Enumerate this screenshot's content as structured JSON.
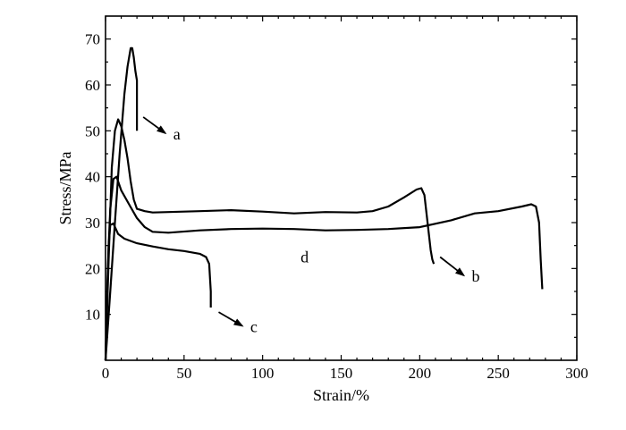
{
  "chart_data": {
    "type": "line",
    "xlabel": "Strain/%",
    "ylabel": "Stress/MPa",
    "xlim": [
      0,
      300
    ],
    "ylim": [
      0,
      75
    ],
    "xticks": [
      0,
      50,
      100,
      150,
      200,
      250,
      300
    ],
    "yticks": [
      10,
      20,
      30,
      40,
      50,
      60,
      70
    ],
    "grid": false,
    "legend": "none",
    "series": [
      {
        "name": "a",
        "x": [
          0,
          3,
          6,
          9,
          12,
          14,
          16,
          17,
          18,
          19,
          20,
          20,
          20
        ],
        "y": [
          0,
          15,
          30,
          45,
          58,
          64,
          68,
          68,
          66,
          63,
          61,
          55,
          50
        ]
      },
      {
        "name": "b",
        "x": [
          0,
          2,
          4,
          6,
          8,
          10,
          12,
          14,
          16,
          18,
          20,
          25,
          30,
          40,
          60,
          80,
          100,
          120,
          140,
          160,
          170,
          180,
          190,
          198,
          201,
          203,
          205,
          207,
          208,
          209
        ],
        "y": [
          0,
          22,
          42,
          50,
          52.5,
          51,
          48,
          44,
          39,
          35,
          33,
          32.5,
          32.2,
          32.3,
          32.5,
          32.7,
          32.4,
          32.0,
          32.3,
          32.2,
          32.5,
          33.5,
          35.5,
          37.2,
          37.5,
          36,
          30,
          24,
          22,
          21
        ]
      },
      {
        "name": "c",
        "x": [
          0,
          1,
          2,
          3,
          5,
          8,
          12,
          20,
          30,
          40,
          50,
          60,
          64,
          66,
          67,
          67
        ],
        "y": [
          0,
          15,
          25,
          29.5,
          29.8,
          27.5,
          26.5,
          25.5,
          24.8,
          24.2,
          23.8,
          23.2,
          22.5,
          21,
          15,
          11.5
        ]
      },
      {
        "name": "d",
        "x": [
          0,
          2,
          3,
          5,
          7,
          10,
          15,
          20,
          25,
          30,
          40,
          60,
          80,
          100,
          120,
          140,
          160,
          180,
          200,
          220,
          235,
          250,
          265,
          271,
          274,
          276,
          277,
          278
        ],
        "y": [
          0,
          25,
          33,
          39.5,
          40,
          37,
          34,
          31,
          29,
          28,
          27.8,
          28.3,
          28.6,
          28.7,
          28.6,
          28.3,
          28.4,
          28.6,
          29.0,
          30.5,
          32.0,
          32.5,
          33.5,
          34.0,
          33.5,
          30,
          22,
          15.5
        ]
      }
    ],
    "annotations": [
      {
        "text": "a",
        "from": [
          24,
          53
        ],
        "to": [
          38,
          49.5
        ]
      },
      {
        "text": "b",
        "from": [
          213,
          22.5
        ],
        "to": [
          228,
          18.5
        ]
      },
      {
        "text": "c",
        "from": [
          72,
          10.5
        ],
        "to": [
          87,
          7.5
        ]
      },
      {
        "text": "d",
        "from": [
          127,
          27.6
        ],
        "to": [
          127,
          27.6
        ],
        "label_at": [
          127,
          22.5
        ]
      }
    ]
  }
}
